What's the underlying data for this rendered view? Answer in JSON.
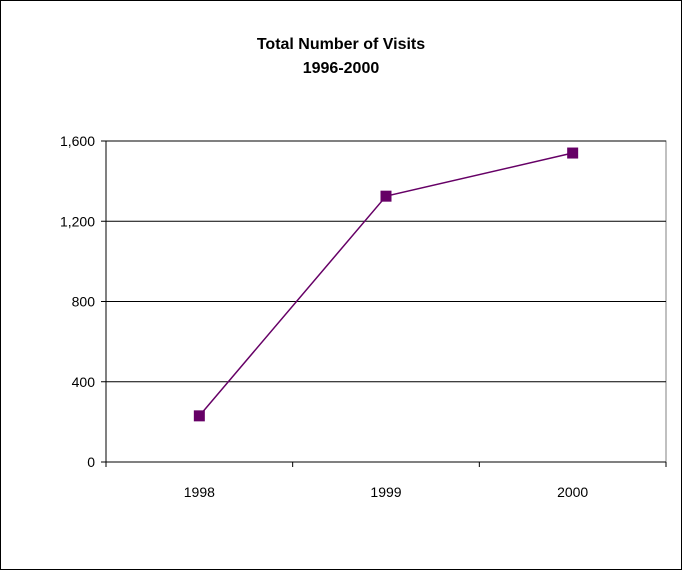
{
  "chart_data": {
    "type": "line",
    "title": "Total Number of Visits",
    "subtitle": "1996-2000",
    "xlabel": "",
    "ylabel": "",
    "categories": [
      "1998",
      "1999",
      "2000"
    ],
    "series": [
      {
        "values": [
          230,
          1325,
          1540
        ],
        "color": "#660066",
        "marker": "square"
      }
    ],
    "ylim": [
      0,
      1600
    ],
    "yticks": [
      0,
      400,
      800,
      1200,
      1600
    ],
    "ytick_labels": [
      "0",
      "400",
      "800",
      "1,200",
      "1,600"
    ],
    "grid": "horizontal",
    "plot_background": "#ffffff",
    "legend": "none"
  }
}
